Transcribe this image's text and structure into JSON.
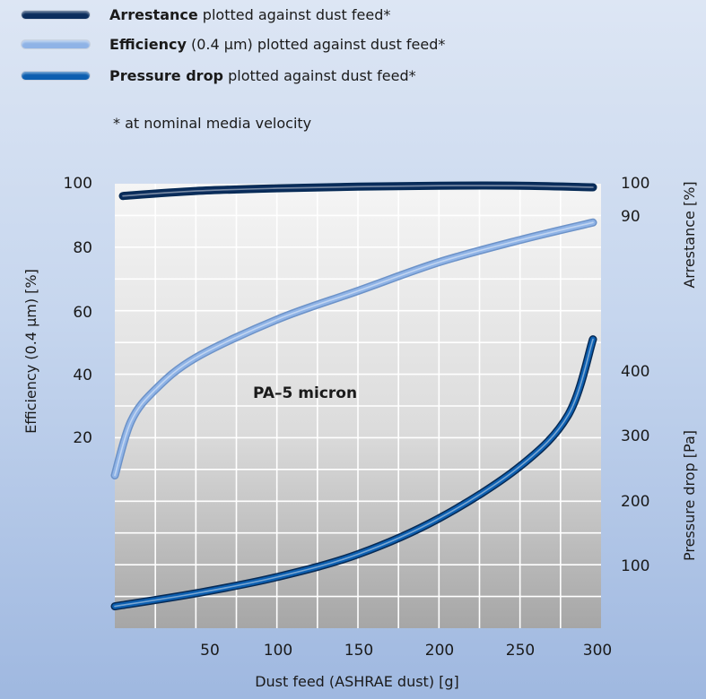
{
  "legend": [
    {
      "bold": "Arrestance",
      "rest": " plotted against dust feed*",
      "color": "#0b2d5c"
    },
    {
      "bold": "Efficiency",
      "rest": " (0.4 µm) plotted against dust feed*",
      "color": "#8fb3e6"
    },
    {
      "bold": "Pressure drop",
      "rest": " plotted against dust feed*",
      "color": "#0d5fb0"
    }
  ],
  "footnote": "* at nominal media velocity",
  "chart_data": {
    "type": "line",
    "annotation": "PA–5 micron",
    "xlabel": "Dust feed (ASHRAE dust) [g]",
    "ylabel_left": "Efficiency (0.4 µm) [%]",
    "ylabel_right_top": "Arrestance [%]",
    "ylabel_right_bottom": "Pressure drop [Pa]",
    "xlim": [
      0,
      300
    ],
    "x_ticks": [
      "50",
      "100",
      "150",
      "200",
      "250",
      "300"
    ],
    "left_ticks": [
      "100",
      "80",
      "60",
      "40",
      "20"
    ],
    "right_top_ticks": [
      "100",
      "90"
    ],
    "right_bottom_ticks": [
      "400",
      "300",
      "200",
      "100"
    ],
    "grid": true,
    "series": [
      {
        "name": "Arrestance",
        "axis": "arrestance",
        "color": "#0b2d5c",
        "x": [
          5,
          50,
          100,
          150,
          200,
          250,
          295
        ],
        "y": [
          95.5,
          97,
          97.8,
          98.3,
          98.6,
          98.6,
          98.1
        ]
      },
      {
        "name": "Efficiency",
        "axis": "efficiency",
        "color": "#8fb3e6",
        "x": [
          0,
          10,
          25,
          50,
          100,
          150,
          200,
          250,
          295
        ],
        "y": [
          10,
          27,
          37,
          47,
          59,
          68,
          77,
          84,
          89.5
        ]
      },
      {
        "name": "Pressure drop",
        "axis": "pressure",
        "color": "#0d5fb0",
        "x": [
          0,
          50,
          100,
          150,
          200,
          250,
          280,
          295
        ],
        "y": [
          40,
          60,
          85,
          120,
          175,
          255,
          335,
          450
        ]
      }
    ]
  }
}
